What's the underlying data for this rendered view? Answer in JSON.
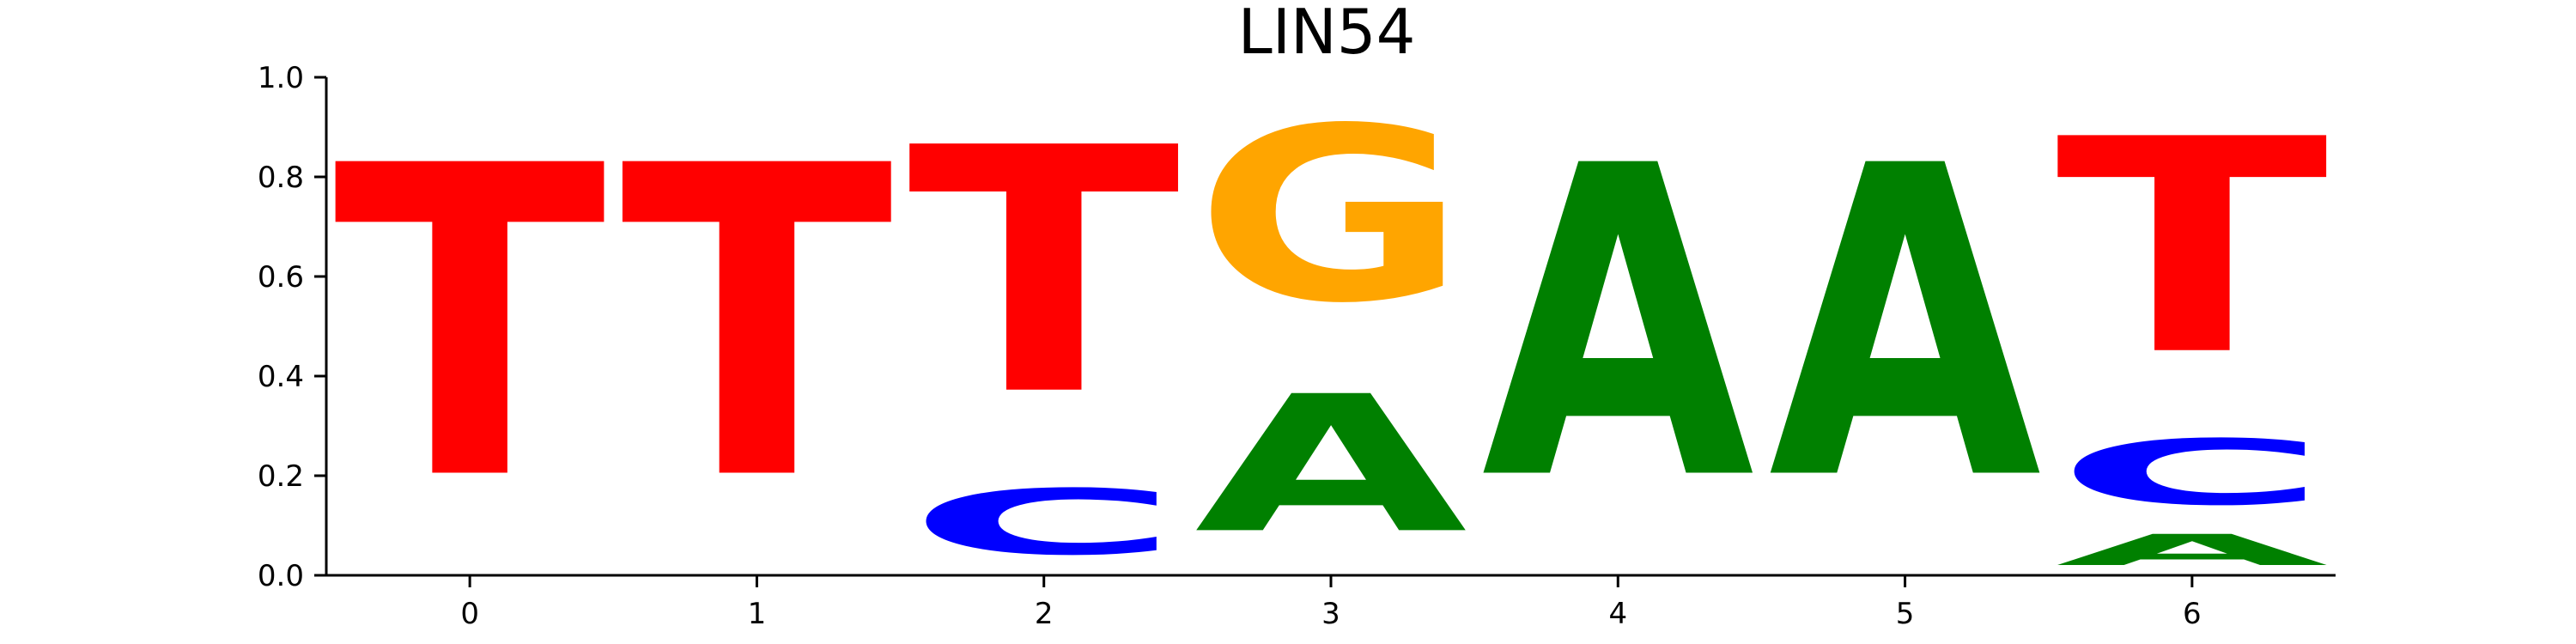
{
  "chart_data": {
    "type": "sequence-logo",
    "title": "LIN54",
    "xlabel": "",
    "ylabel": "",
    "positions": [
      0,
      1,
      2,
      3,
      4,
      5,
      6
    ],
    "xticks": [
      "0",
      "1",
      "2",
      "3",
      "4",
      "5",
      "6"
    ],
    "yticks": [
      "0.0",
      "0.2",
      "0.4",
      "0.6",
      "0.8",
      "1.0"
    ],
    "ylim": [
      0,
      1
    ],
    "colors": {
      "A": "#008000",
      "C": "#0000ff",
      "G": "#ffa500",
      "T": "#ff0000"
    },
    "stacks": [
      [
        {
          "letter": "T",
          "value": 1.0
        }
      ],
      [
        {
          "letter": "T",
          "value": 1.0
        }
      ],
      [
        {
          "letter": "C",
          "value": 0.21
        },
        {
          "letter": "T",
          "value": 0.79
        }
      ],
      [
        {
          "letter": "A",
          "value": 0.44
        },
        {
          "letter": "G",
          "value": 0.56
        }
      ],
      [
        {
          "letter": "A",
          "value": 1.0
        }
      ],
      [
        {
          "letter": "A",
          "value": 1.0
        }
      ],
      [
        {
          "letter": "A",
          "value": 0.1
        },
        {
          "letter": "C",
          "value": 0.21
        },
        {
          "letter": "T",
          "value": 0.69
        }
      ]
    ],
    "grid": false,
    "legend": "none"
  }
}
